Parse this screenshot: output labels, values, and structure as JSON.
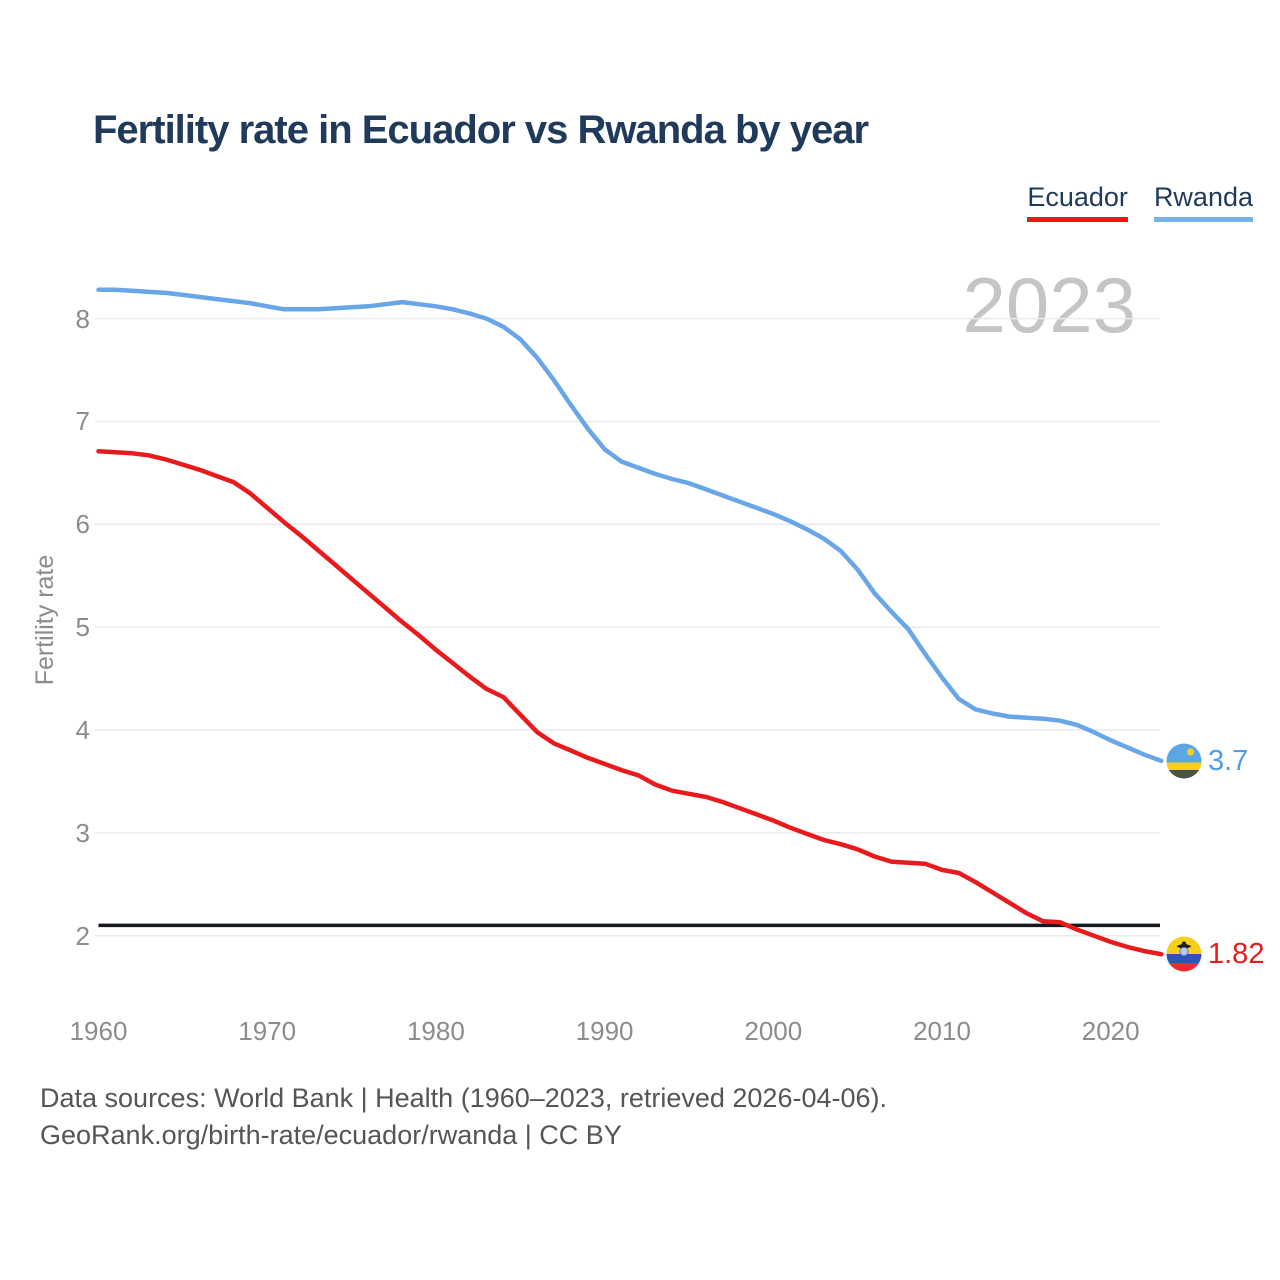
{
  "page": {
    "background": "#ffffff"
  },
  "header": {
    "title": "Fertility rate in Ecuador vs Rwanda by year"
  },
  "legend": {
    "items": [
      {
        "label": "Ecuador",
        "color": "#f31515"
      },
      {
        "label": "Rwanda",
        "color": "#76b1e8"
      }
    ]
  },
  "watermark": {
    "year_label": "2023"
  },
  "icons": {
    "ecuador": "ecuador-flag-icon",
    "rwanda": "rwanda-flag-icon"
  },
  "chart_data": {
    "type": "line",
    "title": "Fertility rate in Ecuador vs Rwanda by year",
    "xlabel": "",
    "ylabel": "Fertility rate",
    "x_ticks": [
      1960,
      1970,
      1980,
      1990,
      2000,
      2010,
      2020
    ],
    "y_ticks": [
      2,
      3,
      4,
      5,
      6,
      7,
      8
    ],
    "xlim": [
      1960,
      2023
    ],
    "ylim": [
      1.55,
      8.75
    ],
    "grid": "horizontal",
    "legend_position": "top-right",
    "reference_line": {
      "value": 2.1,
      "color": "#14181f"
    },
    "x": [
      1960,
      1961,
      1962,
      1963,
      1964,
      1965,
      1966,
      1967,
      1968,
      1969,
      1970,
      1971,
      1972,
      1973,
      1974,
      1975,
      1976,
      1977,
      1978,
      1979,
      1980,
      1981,
      1982,
      1983,
      1984,
      1985,
      1986,
      1987,
      1988,
      1989,
      1990,
      1991,
      1992,
      1993,
      1994,
      1995,
      1996,
      1997,
      1998,
      1999,
      2000,
      2001,
      2002,
      2003,
      2004,
      2005,
      2006,
      2007,
      2008,
      2009,
      2010,
      2011,
      2012,
      2013,
      2014,
      2015,
      2016,
      2017,
      2018,
      2019,
      2020,
      2021,
      2022,
      2023
    ],
    "series": [
      {
        "name": "Ecuador",
        "color": "#e81a1d",
        "end_value": 1.82,
        "end_label": "1.82",
        "values": [
          6.71,
          6.7,
          6.69,
          6.67,
          6.63,
          6.58,
          6.53,
          6.47,
          6.41,
          6.3,
          6.16,
          6.02,
          5.89,
          5.75,
          5.61,
          5.47,
          5.33,
          5.19,
          5.05,
          4.92,
          4.78,
          4.65,
          4.52,
          4.4,
          4.32,
          4.15,
          3.98,
          3.87,
          3.8,
          3.73,
          3.67,
          3.61,
          3.56,
          3.47,
          3.41,
          3.38,
          3.35,
          3.3,
          3.24,
          3.18,
          3.12,
          3.05,
          2.99,
          2.93,
          2.89,
          2.84,
          2.77,
          2.72,
          2.71,
          2.7,
          2.64,
          2.61,
          2.52,
          2.42,
          2.32,
          2.22,
          2.14,
          2.13,
          2.06,
          2.0,
          1.94,
          1.89,
          1.85,
          1.82
        ]
      },
      {
        "name": "Rwanda",
        "color": "#68a6e8",
        "end_value": 3.7,
        "end_label": "3.7",
        "values": [
          8.28,
          8.28,
          8.27,
          8.26,
          8.25,
          8.23,
          8.21,
          8.19,
          8.17,
          8.15,
          8.12,
          8.09,
          8.09,
          8.09,
          8.1,
          8.11,
          8.12,
          8.14,
          8.16,
          8.14,
          8.12,
          8.09,
          8.05,
          8.0,
          7.92,
          7.8,
          7.62,
          7.4,
          7.16,
          6.93,
          6.73,
          6.61,
          6.55,
          6.49,
          6.44,
          6.4,
          6.34,
          6.28,
          6.22,
          6.16,
          6.1,
          6.03,
          5.95,
          5.86,
          5.74,
          5.56,
          5.33,
          5.15,
          4.98,
          4.74,
          4.51,
          4.3,
          4.2,
          4.16,
          4.13,
          4.12,
          4.11,
          4.09,
          4.05,
          3.98,
          3.9,
          3.83,
          3.76,
          3.7
        ]
      }
    ]
  },
  "footer": {
    "line1": "Data sources: World Bank | Health (1960–2023, retrieved 2026-04-06).",
    "line2": "GeoRank.org/birth-rate/ecuador/rwanda | CC BY"
  }
}
